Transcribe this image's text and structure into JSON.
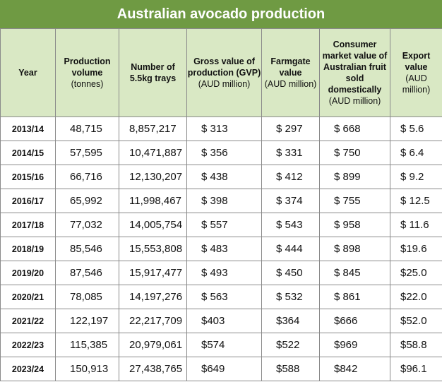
{
  "title": "Australian avocado production",
  "headers": [
    {
      "bold": "Year",
      "normal": ""
    },
    {
      "bold": "Production volume",
      "normal": "(tonnes)"
    },
    {
      "bold": "Number of 5.5kg trays",
      "normal": ""
    },
    {
      "bold": "Gross value of production (GVP)",
      "normal": "(AUD million)"
    },
    {
      "bold": "Farmgate value",
      "normal": "(AUD million)"
    },
    {
      "bold": "Consumer market value of Australian fruit sold domestically",
      "normal": "(AUD million)"
    },
    {
      "bold": "Export value",
      "normal": "(AUD million)"
    }
  ],
  "rows": [
    {
      "year": "2013/14",
      "volume": "48,715",
      "trays": "8,857,217",
      "gvp": "$ 313",
      "farmgate": "$ 297",
      "consumer": "$ 668",
      "export": "$ 5.6"
    },
    {
      "year": "2014/15",
      "volume": "57,595",
      "trays": "10,471,887",
      "gvp": "$ 356",
      "farmgate": "$ 331",
      "consumer": "$ 750",
      "export": "$ 6.4"
    },
    {
      "year": "2015/16",
      "volume": "66,716",
      "trays": "12,130,207",
      "gvp": "$ 438",
      "farmgate": "$ 412",
      "consumer": "$ 899",
      "export": "$ 9.2"
    },
    {
      "year": "2016/17",
      "volume": "65,992",
      "trays": "11,998,467",
      "gvp": "$ 398",
      "farmgate": "$ 374",
      "consumer": "$ 755",
      "export": "$ 12.5"
    },
    {
      "year": "2017/18",
      "volume": "77,032",
      "trays": "14,005,754",
      "gvp": "$ 557",
      "farmgate": "$ 543",
      "consumer": "$ 958",
      "export": "$ 11.6"
    },
    {
      "year": "2018/19",
      "volume": "85,546",
      "trays": "15,553,808",
      "gvp": "$ 483",
      "farmgate": "$ 444",
      "consumer": "$ 898",
      "export": "$19.6"
    },
    {
      "year": "2019/20",
      "volume": "87,546",
      "trays": "15,917,477",
      "gvp": "$ 493",
      "farmgate": "$ 450",
      "consumer": "$ 845",
      "export": "$25.0"
    },
    {
      "year": "2020/21",
      "volume": "78,085",
      "trays": "14,197,276",
      "gvp": "$ 563",
      "farmgate": "$ 532",
      "consumer": "$ 861",
      "export": "$22.0"
    },
    {
      "year": "2021/22",
      "volume": "122,197",
      "trays": "22,217,709",
      "gvp": "$403",
      "farmgate": "$364",
      "consumer": "$666",
      "export": "$52.0"
    },
    {
      "year": "2022/23",
      "volume": "115,385",
      "trays": "20,979,061",
      "gvp": "$574",
      "farmgate": "$522",
      "consumer": "$969",
      "export": "$58.8"
    },
    {
      "year": "2023/24",
      "volume": "150,913",
      "trays": "27,438,765",
      "gvp": "$649",
      "farmgate": "$588",
      "consumer": "$842",
      "export": "$96.1"
    }
  ]
}
